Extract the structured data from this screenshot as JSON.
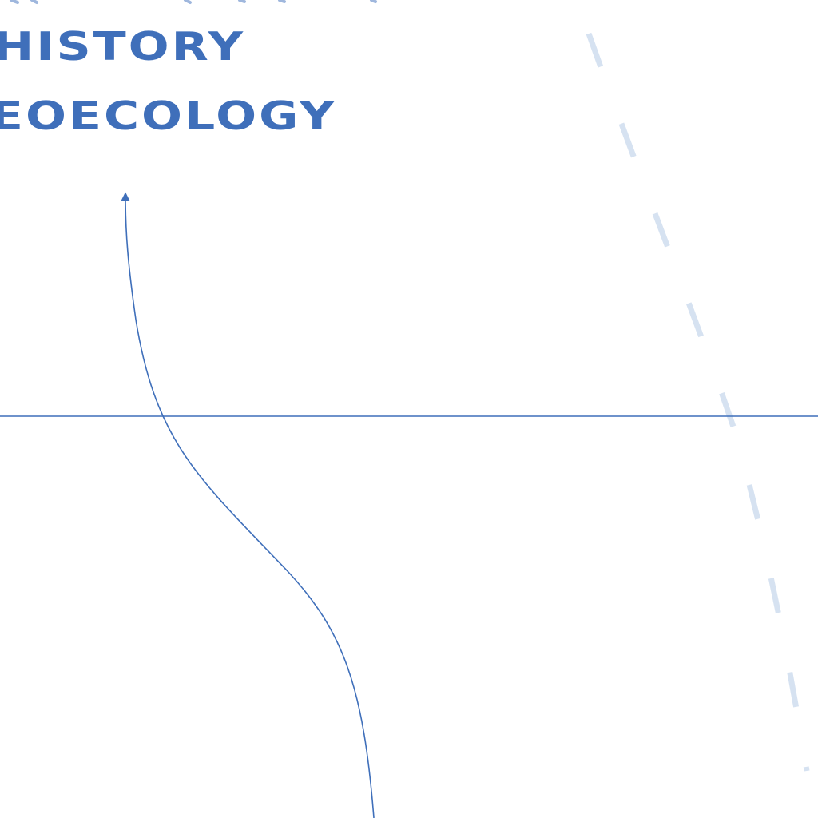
{
  "labels": {
    "line1": "HISTORY",
    "line2": "EOECOLOGY"
  },
  "colors": {
    "ink": "#3f6fba",
    "dash": "#d6e2f1",
    "background": "#ffffff"
  }
}
